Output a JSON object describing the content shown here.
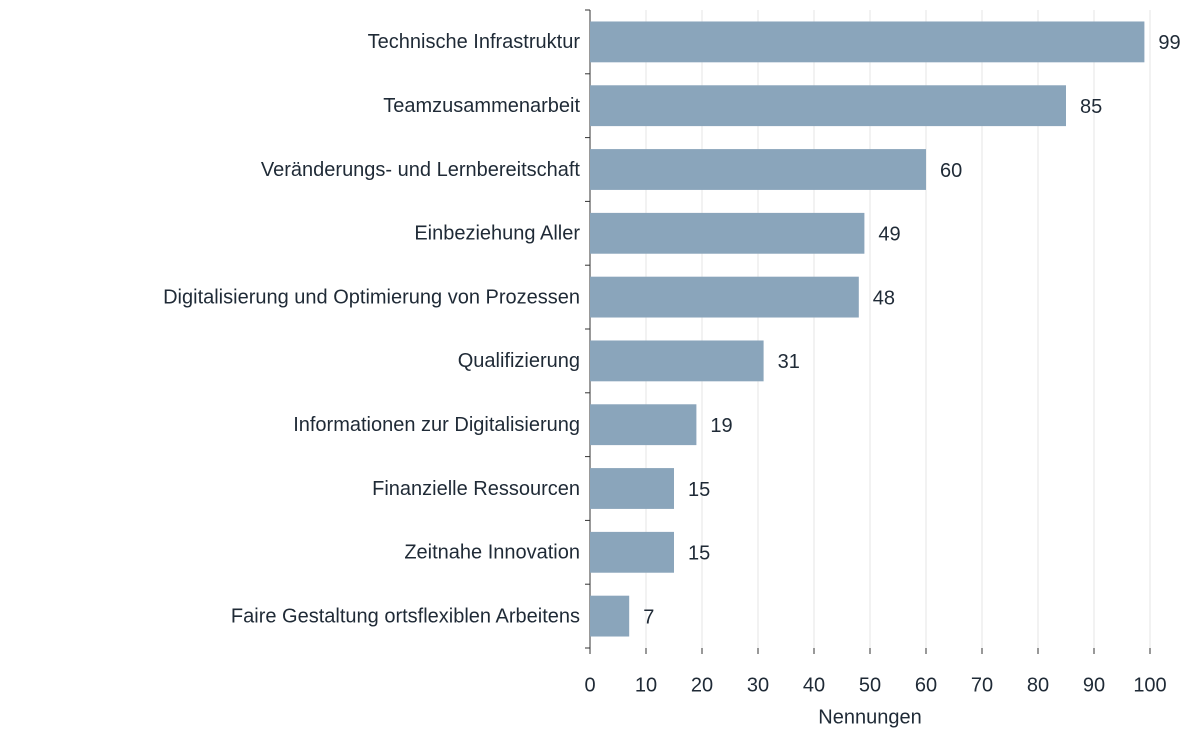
{
  "chart_data": {
    "type": "bar",
    "orientation": "horizontal",
    "x_label": "Nennungen",
    "categories": [
      "Technische Infrastruktur",
      "Teamzusammenarbeit",
      "Veränderungs- und Lernbereitschaft",
      "Einbeziehung Aller",
      "Digitalisierung und Optimierung von Prozessen",
      "Qualifizierung",
      "Informationen zur Digitalisierung",
      "Finanzielle Ressourcen",
      "Zeitnahe Innovation",
      "Faire Gestaltung ortsflexiblen Arbeitens"
    ],
    "values": [
      99,
      85,
      60,
      49,
      48,
      31,
      19,
      15,
      15,
      7
    ],
    "color": "#8aa5bb",
    "xlim": [
      0,
      100
    ],
    "xticks": [
      0,
      10,
      20,
      30,
      40,
      50,
      60,
      70,
      80,
      90,
      100
    ],
    "grid": true
  }
}
